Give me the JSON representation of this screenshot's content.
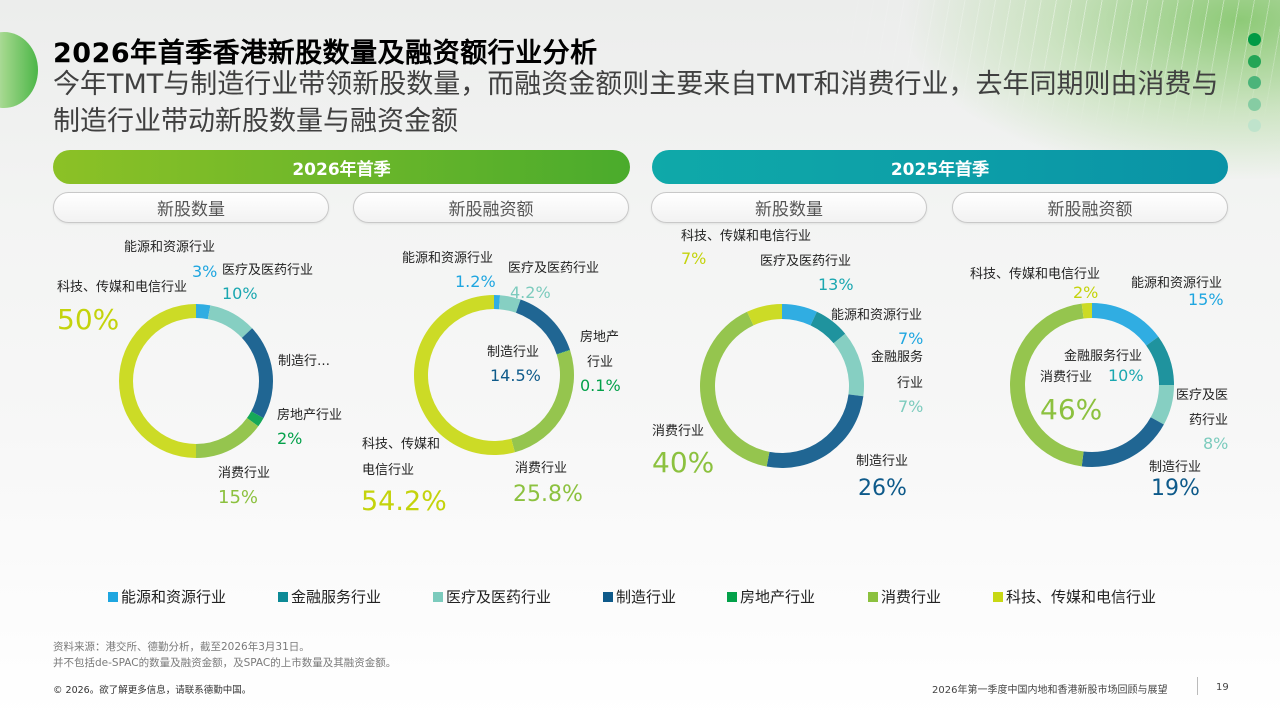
{
  "header": {
    "title": "2026年首季香港新股数量及融资额行业分析",
    "subtitle": "今年TMT与制造行业带领新股数量，而融资金额则主要来自TMT和消费行业，去年同期则由消费与制造行业带动新股数量与融资金额"
  },
  "decor_colors": {
    "dots": [
      "#009a44",
      "#23a556",
      "#4cb47a",
      "#86cca3",
      "#bfe3cc"
    ]
  },
  "periods": [
    {
      "label": "2026年首季",
      "sub_tabs": [
        "新股数量",
        "新股融资额"
      ]
    },
    {
      "label": "2025年首季",
      "sub_tabs": [
        "新股数量",
        "新股融资额"
      ]
    }
  ],
  "industries": {
    "energy": {
      "name": "能源和资源行业",
      "color": "#1fa6e0"
    },
    "finance": {
      "name": "金融服务行业",
      "color": "#0d8a96"
    },
    "health": {
      "name": "医疗及医药行业",
      "color": "#7ccbbd"
    },
    "manufacturing": {
      "name": "制造行业",
      "color": "#0e5a8a"
    },
    "realestate": {
      "name": "房地产行业",
      "color": "#03a14a"
    },
    "consumer": {
      "name": "消费行业",
      "color": "#8cc13f"
    },
    "tmt": {
      "name": "科技、传媒和电信行业",
      "color": "#c8d814"
    }
  },
  "chart_data": [
    {
      "type": "pie",
      "title": "2026年首季 新股数量",
      "slices": [
        {
          "key": "energy",
          "label": "能源和资源行业",
          "value": 3,
          "value_label": "3%"
        },
        {
          "key": "health",
          "label": "医疗及医药行业",
          "value": 10,
          "value_label": "10%"
        },
        {
          "key": "manufacturing",
          "label": "制造行…",
          "value": 20,
          "value_label": ""
        },
        {
          "key": "realestate",
          "label": "房地产行业",
          "value": 2,
          "value_label": "2%"
        },
        {
          "key": "consumer",
          "label": "消费行业",
          "value": 15,
          "value_label": "15%"
        },
        {
          "key": "tmt",
          "label": "科技、传媒和电信行业",
          "value": 50,
          "value_label": "50%"
        }
      ]
    },
    {
      "type": "pie",
      "title": "2026年首季 新股融资额",
      "slices": [
        {
          "key": "energy",
          "label": "能源和资源行业",
          "value": 1.2,
          "value_label": "1.2%"
        },
        {
          "key": "health",
          "label": "医疗及医药行业",
          "value": 4.2,
          "value_label": "4.2%"
        },
        {
          "key": "manufacturing",
          "label": "制造行业",
          "value": 14.5,
          "value_label": "14.5%"
        },
        {
          "key": "realestate",
          "label": "房地产行业",
          "label_lines": [
            "房地产",
            "行业"
          ],
          "value": 0.1,
          "value_label": "0.1%"
        },
        {
          "key": "consumer",
          "label": "消费行业",
          "value": 25.8,
          "value_label": "25.8%"
        },
        {
          "key": "tmt",
          "label": "科技、传媒和电信行业",
          "label_lines": [
            "科技、传媒和",
            "电信行业"
          ],
          "value": 54.2,
          "value_label": "54.2%"
        }
      ]
    },
    {
      "type": "pie",
      "title": "2025年首季 新股数量",
      "slices": [
        {
          "key": "energy",
          "label": "能源和资源行业",
          "value": 7,
          "value_label": "7%"
        },
        {
          "key": "finance",
          "label": "金融服务行业",
          "label_lines": [
            "金融服务",
            "行业"
          ],
          "value": 7,
          "value_label": "7%"
        },
        {
          "key": "health",
          "label": "医疗及医药行业",
          "value": 13,
          "value_label": "13%"
        },
        {
          "key": "manufacturing",
          "label": "制造行业",
          "value": 26,
          "value_label": "26%"
        },
        {
          "key": "consumer",
          "label": "消费行业",
          "value": 40,
          "value_label": "40%"
        },
        {
          "key": "tmt",
          "label": "科技、传媒和电信行业",
          "value": 7,
          "value_label": "7%"
        }
      ]
    },
    {
      "type": "pie",
      "title": "2025年首季 新股融资额",
      "slices": [
        {
          "key": "energy",
          "label": "能源和资源行业",
          "value": 15,
          "value_label": "15%"
        },
        {
          "key": "finance",
          "label": "金融服务行业",
          "value": 10,
          "value_label": "10%"
        },
        {
          "key": "health",
          "label": "医疗及医药行业",
          "label_lines": [
            "医疗及医",
            "药行业"
          ],
          "value": 8,
          "value_label": "8%"
        },
        {
          "key": "manufacturing",
          "label": "制造行业",
          "value": 19,
          "value_label": "19%"
        },
        {
          "key": "consumer",
          "label": "消费行业",
          "value": 46,
          "value_label": "46%"
        },
        {
          "key": "tmt",
          "label": "科技、传媒和电信行业",
          "value": 2,
          "value_label": "2%"
        }
      ]
    }
  ],
  "legend": [
    {
      "key": "energy",
      "label": "能源和资源行业"
    },
    {
      "key": "finance",
      "label": "金融服务行业"
    },
    {
      "key": "health",
      "label": "医疗及医药行业"
    },
    {
      "key": "manufacturing",
      "label": "制造行业"
    },
    {
      "key": "realestate",
      "label": "房地产行业"
    },
    {
      "key": "consumer",
      "label": "消费行业"
    },
    {
      "key": "tmt",
      "label": "科技、传媒和电信行业"
    }
  ],
  "notes": {
    "source": "资料来源：港交所、德勤分析，截至2026年3月31日。",
    "exclusion": "并不包括de-SPAC的数量及融资金额，及SPAC的上市数量及其融资金额。"
  },
  "footer": {
    "copyright": "© 2026。欲了解更多信息，请联系德勤中国。",
    "report_name": "2026年第一季度中国内地和香港新股市场回顾与展望",
    "page_number": "19"
  }
}
